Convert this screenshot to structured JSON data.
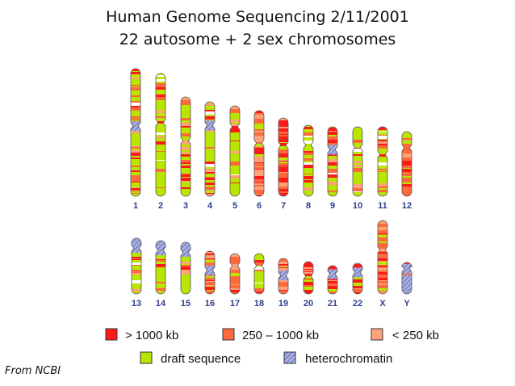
{
  "header": {
    "title": "Human Genome Sequencing 2/11/2001",
    "subtitle": "22 autosome  + 2 sex chromosomes"
  },
  "colors": {
    "large_contig": "#ff1a1a",
    "mid_contig": "#ff6a3c",
    "small_contig": "#ffa27a",
    "draft": "#b8e600",
    "heterochromatin": "#9aa0d8",
    "label": "#2f3f8f",
    "outline": "#555555"
  },
  "chromosomes_row1": [
    {
      "label": "1",
      "palette": "draft",
      "heterochromatin": true
    },
    {
      "label": "2",
      "palette": "draft",
      "heterochromatin": false
    },
    {
      "label": "3",
      "palette": "draft",
      "heterochromatin": false
    },
    {
      "label": "4",
      "palette": "draft",
      "heterochromatin": true
    },
    {
      "label": "5",
      "palette": "draft",
      "heterochromatin": false
    },
    {
      "label": "6",
      "palette": "orange",
      "heterochromatin": false
    },
    {
      "label": "7",
      "palette": "red",
      "heterochromatin": false
    },
    {
      "label": "8",
      "palette": "draft",
      "heterochromatin": false
    },
    {
      "label": "9",
      "palette": "draft",
      "heterochromatin": true
    },
    {
      "label": "10",
      "palette": "draft",
      "heterochromatin": false
    },
    {
      "label": "11",
      "palette": "draft",
      "heterochromatin": false
    },
    {
      "label": "12",
      "palette": "orange",
      "heterochromatin": false
    }
  ],
  "chromosomes_row2": [
    {
      "label": "13",
      "palette": "draft",
      "heterochromatin": true
    },
    {
      "label": "14",
      "palette": "draft",
      "heterochromatin": true
    },
    {
      "label": "15",
      "palette": "draft",
      "heterochromatin": true
    },
    {
      "label": "16",
      "palette": "orange",
      "heterochromatin": true
    },
    {
      "label": "17",
      "palette": "orange",
      "heterochromatin": false
    },
    {
      "label": "18",
      "palette": "draft",
      "heterochromatin": false
    },
    {
      "label": "19",
      "palette": "orange",
      "heterochromatin": true
    },
    {
      "label": "20",
      "palette": "red",
      "heterochromatin": false
    },
    {
      "label": "21",
      "palette": "red",
      "heterochromatin": true
    },
    {
      "label": "22",
      "palette": "red",
      "heterochromatin": true
    },
    {
      "label": "X",
      "palette": "orange",
      "heterochromatin": false
    },
    {
      "label": "Y",
      "palette": "red",
      "heterochromatin": true
    }
  ],
  "legend": [
    {
      "label": "> 1000 kb",
      "color": "#ff1a1a",
      "hatched": false
    },
    {
      "label": "250 – 1000 kb",
      "color": "#ff6a3c",
      "hatched": false
    },
    {
      "label": "< 250 kb",
      "color": "#ffa27a",
      "hatched": false
    },
    {
      "label": "draft sequence",
      "color": "#b8e600",
      "hatched": false
    },
    {
      "label": "heterochromatin",
      "color": "#9aa0d8",
      "hatched": true
    }
  ],
  "footer": {
    "credit": "From NCBI"
  }
}
